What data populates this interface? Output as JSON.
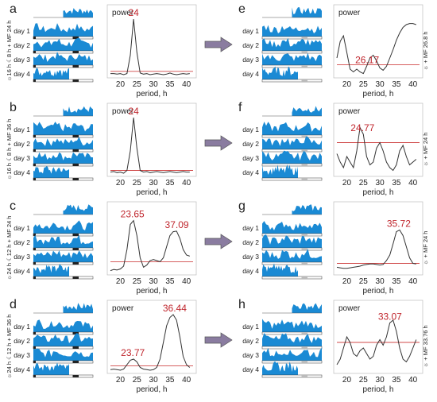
{
  "chart_data": [
    {
      "panel": "a",
      "type": "line",
      "actogram": {
        "day_labels": [
          "day 1",
          "day 2",
          "day 3",
          "day 4"
        ],
        "side_label": "☼16 h ☾8 h + MF 24 h",
        "top_block": "right"
      },
      "periodogram": {
        "ylabel": "power",
        "xlabel": "period, h",
        "xlim": [
          17,
          42
        ],
        "xticks": [
          20,
          25,
          30,
          35,
          40
        ],
        "ylim": [
          0,
          1
        ],
        "threshold": 0.06,
        "peaks": [
          {
            "label": "24",
            "x": 24
          }
        ],
        "x": [
          17,
          18,
          19,
          20,
          21,
          22,
          23,
          24,
          25,
          26,
          27,
          28,
          29,
          30,
          31,
          32,
          33,
          34,
          35,
          36,
          37,
          38,
          39,
          40,
          41
        ],
        "y": [
          0.02,
          0.02,
          0.01,
          0.02,
          0.0,
          0.02,
          0.35,
          1.0,
          0.4,
          0.03,
          0.01,
          0.02,
          0.0,
          0.01,
          0.02,
          0.01,
          0.0,
          0.01,
          0.03,
          0.01,
          0.0,
          0.01,
          0.02,
          0.01,
          0.02
        ]
      }
    },
    {
      "panel": "b",
      "type": "line",
      "actogram": {
        "day_labels": [
          "day 1",
          "day 2",
          "day 3",
          "day 4"
        ],
        "side_label": "☼16 h ☾8 h + MF 36 h",
        "top_block": "right"
      },
      "periodogram": {
        "ylabel": "power",
        "xlabel": "period, h",
        "xlim": [
          17,
          42
        ],
        "xticks": [
          20,
          25,
          30,
          35,
          40
        ],
        "ylim": [
          0,
          1
        ],
        "threshold": 0.05,
        "peaks": [
          {
            "label": "24",
            "x": 24
          }
        ],
        "x": [
          17,
          18,
          19,
          20,
          21,
          22,
          23,
          24,
          25,
          26,
          27,
          28,
          29,
          30,
          31,
          32,
          33,
          34,
          35,
          36,
          37,
          38,
          39,
          40,
          41
        ],
        "y": [
          0.02,
          0.03,
          0.01,
          0.02,
          0.0,
          0.05,
          0.4,
          1.0,
          0.45,
          0.05,
          0.02,
          0.03,
          0.01,
          0.02,
          0.03,
          0.02,
          0.01,
          0.02,
          0.03,
          0.02,
          0.01,
          0.02,
          0.03,
          0.02,
          0.02
        ]
      }
    },
    {
      "panel": "c",
      "type": "line",
      "actogram": {
        "day_labels": [
          "day 1",
          "day 2",
          "day 3",
          "day 4"
        ],
        "side_label": "☼24 h ☾12 h + MF 24 h",
        "top_block": "right"
      },
      "periodogram": {
        "ylabel": "",
        "xlabel": "period, h",
        "xlim": [
          17,
          42
        ],
        "xticks": [
          20,
          25,
          30,
          35,
          40
        ],
        "ylim": [
          0,
          1
        ],
        "threshold": 0.18,
        "peaks": [
          {
            "label": "23.65",
            "x": 23.65
          },
          {
            "label": "37.09",
            "x": 37.09
          }
        ],
        "x": [
          17,
          18,
          19,
          20,
          21,
          22,
          23,
          24,
          25,
          26,
          27,
          28,
          29,
          30,
          31,
          32,
          33,
          34,
          35,
          36,
          37,
          38,
          39,
          40,
          41
        ],
        "y": [
          0.02,
          0.04,
          0.03,
          0.05,
          0.1,
          0.4,
          0.85,
          0.92,
          0.65,
          0.25,
          0.08,
          0.12,
          0.2,
          0.22,
          0.2,
          0.18,
          0.25,
          0.45,
          0.65,
          0.72,
          0.73,
          0.6,
          0.4,
          0.3,
          0.28
        ]
      }
    },
    {
      "panel": "d",
      "type": "line",
      "actogram": {
        "day_labels": [
          "day 1",
          "day 2",
          "day 3",
          "day 4"
        ],
        "side_label": "☼24 h ☾12 h + MF 36 h",
        "top_block": "right"
      },
      "periodogram": {
        "ylabel": "power",
        "xlabel": "period, h",
        "xlim": [
          17,
          42
        ],
        "xticks": [
          20,
          25,
          30,
          35,
          40
        ],
        "ylim": [
          0,
          1
        ],
        "threshold": 0.08,
        "peaks": [
          {
            "label": "23.77",
            "x": 23.77
          },
          {
            "label": "36.44",
            "x": 36.44
          }
        ],
        "x": [
          17,
          18,
          19,
          20,
          21,
          22,
          23,
          24,
          25,
          26,
          27,
          28,
          29,
          30,
          31,
          32,
          33,
          34,
          35,
          36,
          37,
          38,
          39,
          40,
          41
        ],
        "y": [
          0.01,
          0.02,
          0.01,
          0.0,
          0.02,
          0.1,
          0.18,
          0.2,
          0.15,
          0.05,
          0.02,
          0.01,
          0.0,
          0.01,
          0.05,
          0.2,
          0.5,
          0.8,
          0.95,
          1.0,
          0.9,
          0.6,
          0.25,
          0.1,
          0.05
        ]
      }
    },
    {
      "panel": "e",
      "type": "line",
      "actogram": {
        "day_labels": [
          "day 1",
          "day 2",
          "day 3",
          "day 4"
        ],
        "side_label": "☼ + MF 26.8 h",
        "top_block": "right"
      },
      "periodogram": {
        "ylabel": "power",
        "xlabel": "period, h",
        "xlim": [
          17,
          42
        ],
        "xticks": [
          20,
          25,
          30,
          35,
          40
        ],
        "ylim": [
          0,
          1
        ],
        "threshold": 0.18,
        "peaks": [
          {
            "label": "26.17",
            "x": 26.17
          }
        ],
        "x": [
          17,
          18,
          19,
          20,
          21,
          22,
          23,
          24,
          25,
          26,
          27,
          28,
          29,
          30,
          31,
          32,
          33,
          34,
          35,
          36,
          37,
          38,
          39,
          40,
          41
        ],
        "y": [
          0.3,
          0.6,
          0.7,
          0.4,
          0.1,
          0.05,
          0.1,
          0.05,
          0.02,
          0.15,
          0.3,
          0.35,
          0.25,
          0.12,
          0.08,
          0.15,
          0.3,
          0.45,
          0.62,
          0.75,
          0.85,
          0.9,
          0.92,
          0.92,
          0.9
        ]
      }
    },
    {
      "panel": "f",
      "type": "line",
      "actogram": {
        "day_labels": [
          "day 1",
          "day 2",
          "day 3",
          "day 4"
        ],
        "side_label": "☼ + MF 24 h",
        "top_block": "right"
      },
      "periodogram": {
        "ylabel": "power",
        "xlabel": "period, h",
        "xlim": [
          17,
          42
        ],
        "xticks": [
          20,
          25,
          30,
          35,
          40
        ],
        "ylim": [
          0,
          1
        ],
        "threshold": 0.55,
        "peaks": [
          {
            "label": "24.77",
            "x": 24.77
          }
        ],
        "x": [
          17,
          18,
          19,
          20,
          21,
          22,
          23,
          24,
          25,
          26,
          27,
          28,
          29,
          30,
          31,
          32,
          33,
          34,
          35,
          36,
          37,
          38,
          39,
          40,
          41
        ],
        "y": [
          0.35,
          0.2,
          0.1,
          0.3,
          0.2,
          0.1,
          0.4,
          0.82,
          0.7,
          0.3,
          0.15,
          0.2,
          0.45,
          0.55,
          0.4,
          0.2,
          0.1,
          0.05,
          0.15,
          0.4,
          0.5,
          0.3,
          0.15,
          0.2,
          0.25
        ]
      }
    },
    {
      "panel": "g",
      "type": "line",
      "actogram": {
        "day_labels": [
          "day 1",
          "day 2",
          "day 3",
          "day 4"
        ],
        "side_label": "☼ + MF 24 h",
        "top_block": "right"
      },
      "periodogram": {
        "ylabel": "",
        "xlabel": "period, h",
        "xlim": [
          17,
          42
        ],
        "xticks": [
          20,
          25,
          30,
          35,
          40
        ],
        "ylim": [
          0,
          1
        ],
        "threshold": 0.15,
        "peaks": [
          {
            "label": "35.72",
            "x": 35.72
          }
        ],
        "x": [
          17,
          18,
          19,
          20,
          21,
          22,
          23,
          24,
          25,
          26,
          27,
          28,
          29,
          30,
          31,
          32,
          33,
          34,
          35,
          36,
          37,
          38,
          39,
          40,
          41
        ],
        "y": [
          0.08,
          0.07,
          0.06,
          0.06,
          0.07,
          0.08,
          0.09,
          0.1,
          0.12,
          0.13,
          0.14,
          0.14,
          0.13,
          0.12,
          0.13,
          0.2,
          0.3,
          0.5,
          0.72,
          0.75,
          0.65,
          0.45,
          0.25,
          0.15,
          0.14
        ]
      }
    },
    {
      "panel": "h",
      "type": "line",
      "actogram": {
        "day_labels": [
          "day 1",
          "day 2",
          "day 3",
          "day 4"
        ],
        "side_label": "☼ + MF 33.76 h",
        "top_block": "right"
      },
      "periodogram": {
        "ylabel": "power",
        "xlabel": "period, h",
        "xlim": [
          17,
          42
        ],
        "xticks": [
          20,
          25,
          30,
          35,
          40
        ],
        "ylim": [
          0,
          1
        ],
        "threshold": 0.5,
        "peaks": [
          {
            "label": "33.07",
            "x": 33.07
          }
        ],
        "x": [
          17,
          18,
          19,
          20,
          21,
          22,
          23,
          24,
          25,
          26,
          27,
          28,
          29,
          30,
          31,
          32,
          33,
          34,
          35,
          36,
          37,
          38,
          39,
          40,
          41
        ],
        "y": [
          0.1,
          0.2,
          0.4,
          0.6,
          0.5,
          0.3,
          0.25,
          0.35,
          0.4,
          0.3,
          0.2,
          0.25,
          0.45,
          0.55,
          0.45,
          0.6,
          0.85,
          0.9,
          0.7,
          0.4,
          0.2,
          0.15,
          0.25,
          0.4,
          0.55
        ]
      }
    }
  ],
  "colors": {
    "activity": "#1a8ad4",
    "curve": "#333333",
    "threshold": "#d04848",
    "peak_label": "#c0262d",
    "arrow": "#8a7ca0",
    "light_bar": "#ffffff",
    "dark_bar": "#222222",
    "grey_bar": "#bbbbbb"
  }
}
